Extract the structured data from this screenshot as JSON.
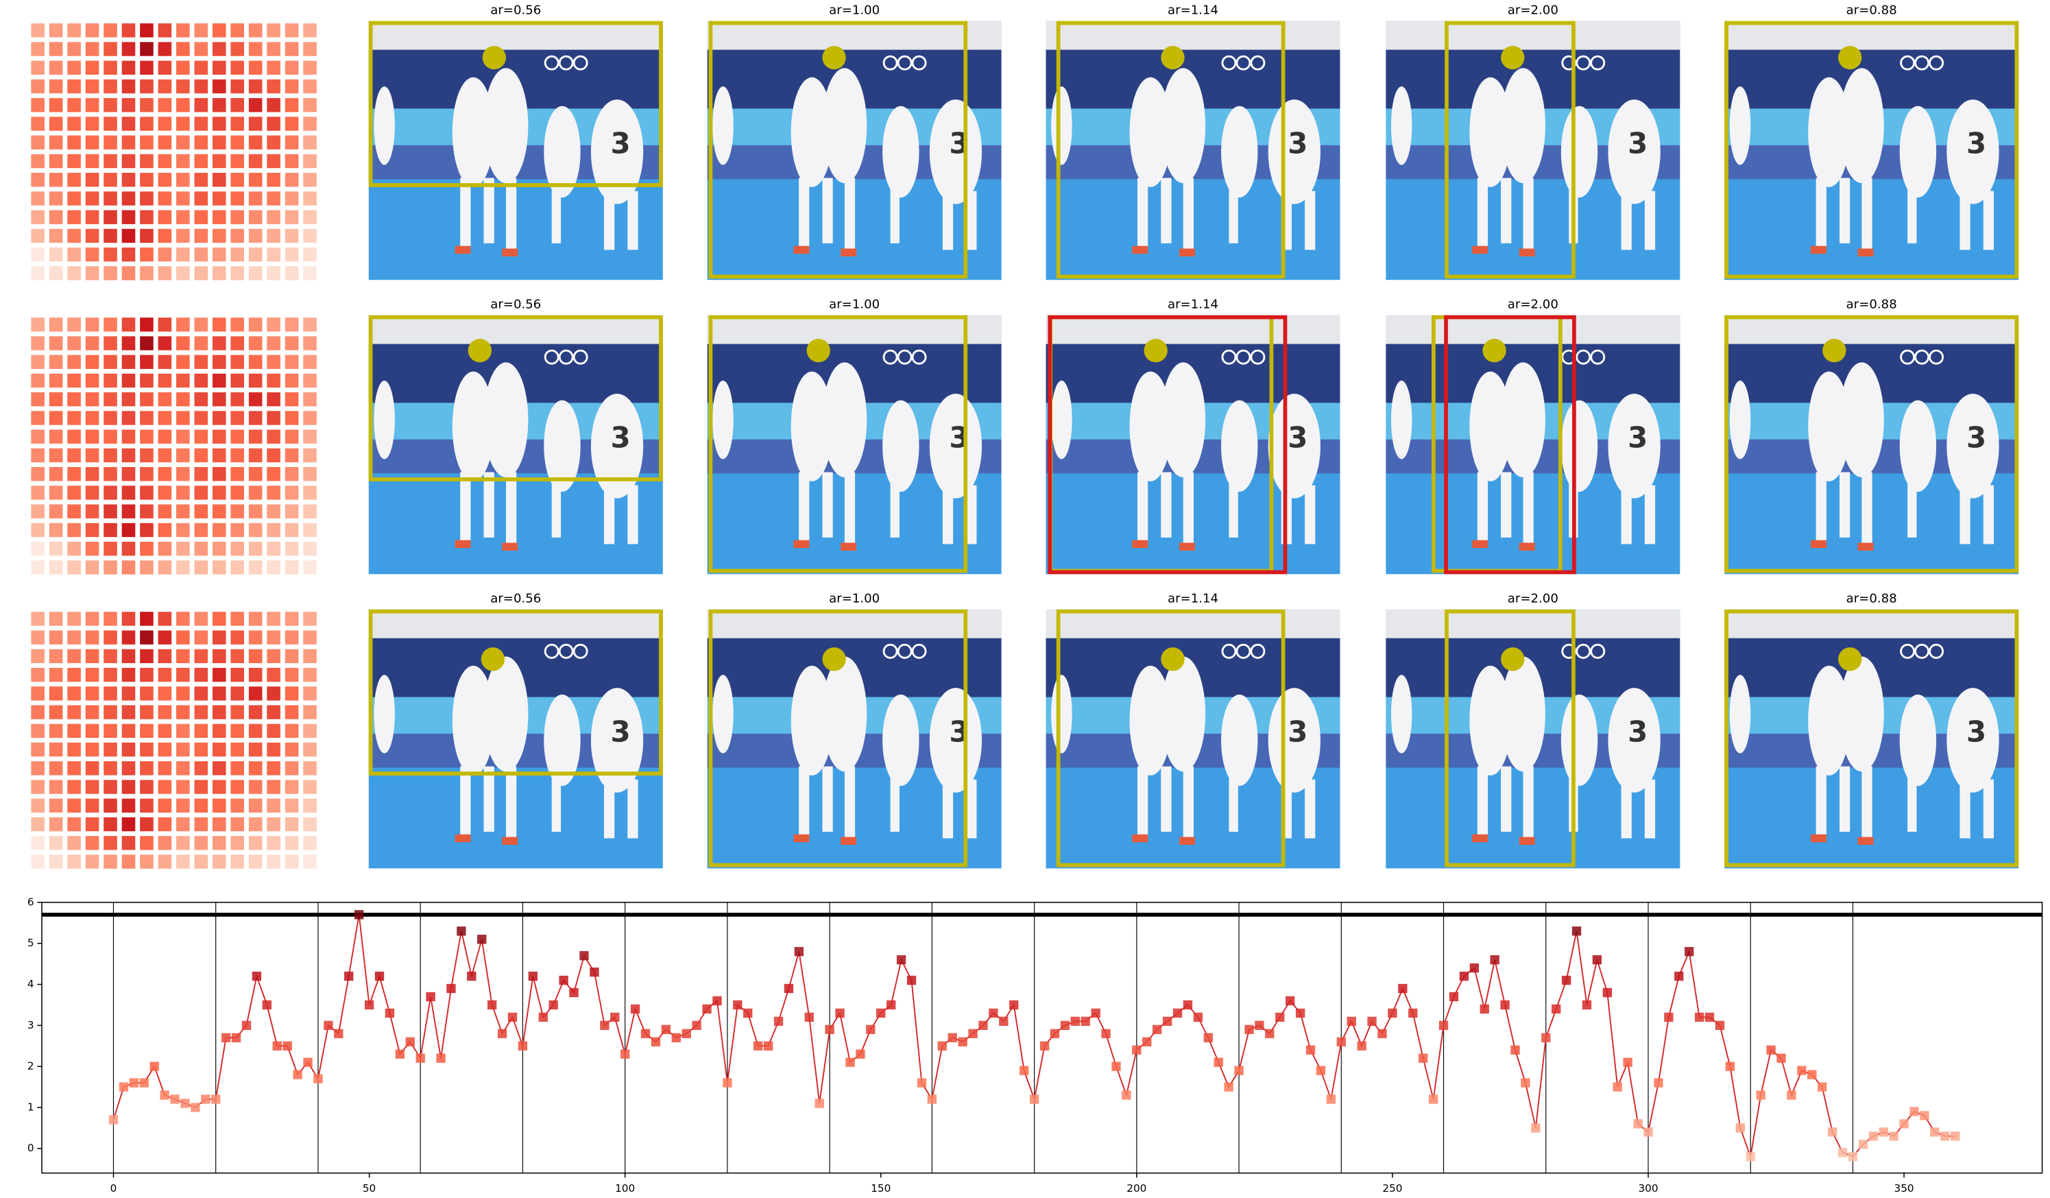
{
  "panel_titles": [
    [
      "ar=0.56",
      "ar=1.00",
      "ar=1.14",
      "ar=2.00",
      "ar=0.88"
    ],
    [
      "ar=0.56",
      "ar=1.00",
      "ar=1.14",
      "ar=2.00",
      "ar=0.88"
    ],
    [
      "ar=0.56",
      "ar=1.00",
      "ar=1.14",
      "ar=2.00",
      "ar=0.88"
    ]
  ],
  "heatmap": {
    "values": [
      [
        0.3,
        0.35,
        0.35,
        0.4,
        0.45,
        0.6,
        0.75,
        0.6,
        0.45,
        0.4,
        0.5,
        0.45,
        0.4,
        0.35,
        0.35,
        0.3
      ],
      [
        0.35,
        0.4,
        0.4,
        0.45,
        0.55,
        0.7,
        0.85,
        0.7,
        0.5,
        0.45,
        0.6,
        0.55,
        0.45,
        0.4,
        0.4,
        0.35
      ],
      [
        0.35,
        0.4,
        0.45,
        0.5,
        0.55,
        0.65,
        0.7,
        0.6,
        0.5,
        0.55,
        0.6,
        0.55,
        0.5,
        0.45,
        0.4,
        0.35
      ],
      [
        0.4,
        0.45,
        0.5,
        0.5,
        0.55,
        0.65,
        0.6,
        0.55,
        0.55,
        0.6,
        0.7,
        0.6,
        0.6,
        0.55,
        0.45,
        0.35
      ],
      [
        0.45,
        0.5,
        0.5,
        0.5,
        0.55,
        0.6,
        0.55,
        0.5,
        0.5,
        0.6,
        0.65,
        0.6,
        0.7,
        0.65,
        0.5,
        0.35
      ],
      [
        0.45,
        0.5,
        0.5,
        0.5,
        0.55,
        0.6,
        0.55,
        0.5,
        0.5,
        0.55,
        0.6,
        0.55,
        0.6,
        0.6,
        0.5,
        0.35
      ],
      [
        0.4,
        0.45,
        0.5,
        0.5,
        0.5,
        0.55,
        0.5,
        0.5,
        0.45,
        0.5,
        0.55,
        0.5,
        0.55,
        0.55,
        0.45,
        0.3
      ],
      [
        0.4,
        0.45,
        0.5,
        0.5,
        0.55,
        0.6,
        0.55,
        0.5,
        0.45,
        0.5,
        0.55,
        0.5,
        0.55,
        0.55,
        0.45,
        0.3
      ],
      [
        0.4,
        0.45,
        0.5,
        0.55,
        0.55,
        0.6,
        0.55,
        0.5,
        0.45,
        0.55,
        0.6,
        0.5,
        0.5,
        0.5,
        0.4,
        0.3
      ],
      [
        0.35,
        0.4,
        0.5,
        0.55,
        0.6,
        0.65,
        0.6,
        0.5,
        0.45,
        0.55,
        0.55,
        0.5,
        0.45,
        0.45,
        0.35,
        0.25
      ],
      [
        0.3,
        0.4,
        0.5,
        0.55,
        0.65,
        0.7,
        0.6,
        0.5,
        0.45,
        0.5,
        0.5,
        0.45,
        0.4,
        0.35,
        0.3,
        0.2
      ],
      [
        0.25,
        0.35,
        0.45,
        0.55,
        0.65,
        0.75,
        0.65,
        0.5,
        0.4,
        0.45,
        0.45,
        0.4,
        0.35,
        0.3,
        0.25,
        0.15
      ],
      [
        0.05,
        0.15,
        0.3,
        0.45,
        0.55,
        0.6,
        0.5,
        0.4,
        0.3,
        0.35,
        0.35,
        0.3,
        0.25,
        0.2,
        0.15,
        0.1
      ],
      [
        0.05,
        0.1,
        0.2,
        0.3,
        0.35,
        0.4,
        0.35,
        0.3,
        0.2,
        0.25,
        0.25,
        0.2,
        0.15,
        0.1,
        0.1,
        0.05
      ]
    ]
  },
  "chart_data": {
    "type": "line",
    "x": [
      0,
      2,
      4,
      6,
      8,
      10,
      12,
      14,
      16,
      18,
      20,
      22,
      24,
      26,
      28,
      30,
      32,
      34,
      36,
      38,
      40,
      42,
      44,
      46,
      48,
      50,
      52,
      54,
      56,
      58,
      60,
      62,
      64,
      66,
      68,
      70,
      72,
      74,
      76,
      78,
      80,
      82,
      84,
      86,
      88,
      90,
      92,
      94,
      96,
      98,
      100,
      102,
      104,
      106,
      108,
      110,
      112,
      114,
      116,
      118,
      120,
      122,
      124,
      126,
      128,
      130,
      132,
      134,
      136,
      138,
      140,
      142,
      144,
      146,
      148,
      150,
      152,
      154,
      156,
      158,
      160,
      162,
      164,
      166,
      168,
      170,
      172,
      174,
      176,
      178,
      180,
      182,
      184,
      186,
      188,
      190,
      192,
      194,
      196,
      198,
      200,
      202,
      204,
      206,
      208,
      210,
      212,
      214,
      216,
      218,
      220,
      222,
      224,
      226,
      228,
      230,
      232,
      234,
      236,
      238,
      240,
      242,
      244,
      246,
      248,
      250,
      252,
      254,
      256,
      258,
      260,
      262,
      264,
      266,
      268,
      270,
      272,
      274,
      276,
      278,
      280,
      282,
      284,
      286,
      288,
      290,
      292,
      294,
      296,
      298,
      300,
      302,
      304,
      306,
      308,
      310,
      312,
      314,
      316,
      318,
      320,
      322,
      324,
      326,
      328,
      330,
      332,
      334,
      336,
      338,
      340,
      342,
      344,
      346,
      348,
      350,
      352,
      354,
      356,
      358,
      360
    ],
    "series": [
      {
        "color": "#d62728",
        "values": [
          0.7,
          1.5,
          1.6,
          1.6,
          2.0,
          1.3,
          1.2,
          1.1,
          1.0,
          1.2,
          1.2,
          2.7,
          2.7,
          3.0,
          4.2,
          3.5,
          2.5,
          2.5,
          1.8,
          2.1,
          1.7,
          3.0,
          2.8,
          4.2,
          5.7,
          3.5,
          4.2,
          3.3,
          2.3,
          2.6,
          2.2,
          3.7,
          2.2,
          3.9,
          5.3,
          4.2,
          5.1,
          3.5,
          2.8,
          3.2,
          2.5,
          4.2,
          3.2,
          3.5,
          4.1,
          3.8,
          4.7,
          4.3,
          3.0,
          3.2,
          2.3,
          3.4,
          2.8,
          2.6,
          2.9,
          2.7,
          2.8,
          3.0,
          3.4,
          3.6,
          1.6,
          3.5,
          3.3,
          2.5,
          2.5,
          3.1,
          3.9,
          4.8,
          3.2,
          1.1,
          2.9,
          3.3,
          2.1,
          2.3,
          2.9,
          3.3,
          3.5,
          4.6,
          4.1,
          1.6,
          1.2,
          2.5,
          2.7,
          2.6,
          2.8,
          3.0,
          3.3,
          3.1,
          3.5,
          1.9,
          1.2,
          2.5,
          2.8,
          3.0,
          3.1,
          3.1,
          3.3,
          2.8,
          2.0,
          1.3,
          2.4,
          2.6,
          2.9,
          3.1,
          3.3,
          3.5,
          3.2,
          2.7,
          2.1,
          1.5,
          1.9,
          2.9,
          3.0,
          2.8,
          3.2,
          3.6,
          3.3,
          2.4,
          1.9,
          1.2,
          2.6,
          3.1,
          2.5,
          3.1,
          2.8,
          3.3,
          3.9,
          3.3,
          2.2,
          1.2,
          3.0,
          3.7,
          4.2,
          4.4,
          3.4,
          4.6,
          3.5,
          2.4,
          1.6,
          0.5,
          2.7,
          3.4,
          4.1,
          5.3,
          3.5,
          4.6,
          3.8,
          1.5,
          2.1,
          0.6,
          0.4,
          1.6,
          3.2,
          4.2,
          4.8,
          3.2,
          3.2,
          3.0,
          2.0,
          0.5,
          -0.2,
          1.3,
          2.4,
          2.2,
          1.3,
          1.9,
          1.8,
          1.5,
          0.4,
          -0.1,
          -0.2,
          0.1,
          0.3,
          0.4,
          0.3,
          0.6,
          0.9,
          0.8,
          0.4,
          0.3,
          0.3
        ]
      }
    ],
    "xlim": [
      -14,
      377
    ],
    "ylim": [
      -0.6,
      6.0
    ],
    "xticks": [
      0,
      50,
      100,
      150,
      200,
      250,
      300,
      350
    ],
    "yticks": [
      0,
      1,
      2,
      3,
      4,
      5,
      6
    ],
    "vlines": [
      0,
      20,
      40,
      60,
      80,
      100,
      120,
      140,
      160,
      180,
      200,
      220,
      240,
      260,
      280,
      300,
      320,
      340
    ],
    "hline": 5.7
  }
}
